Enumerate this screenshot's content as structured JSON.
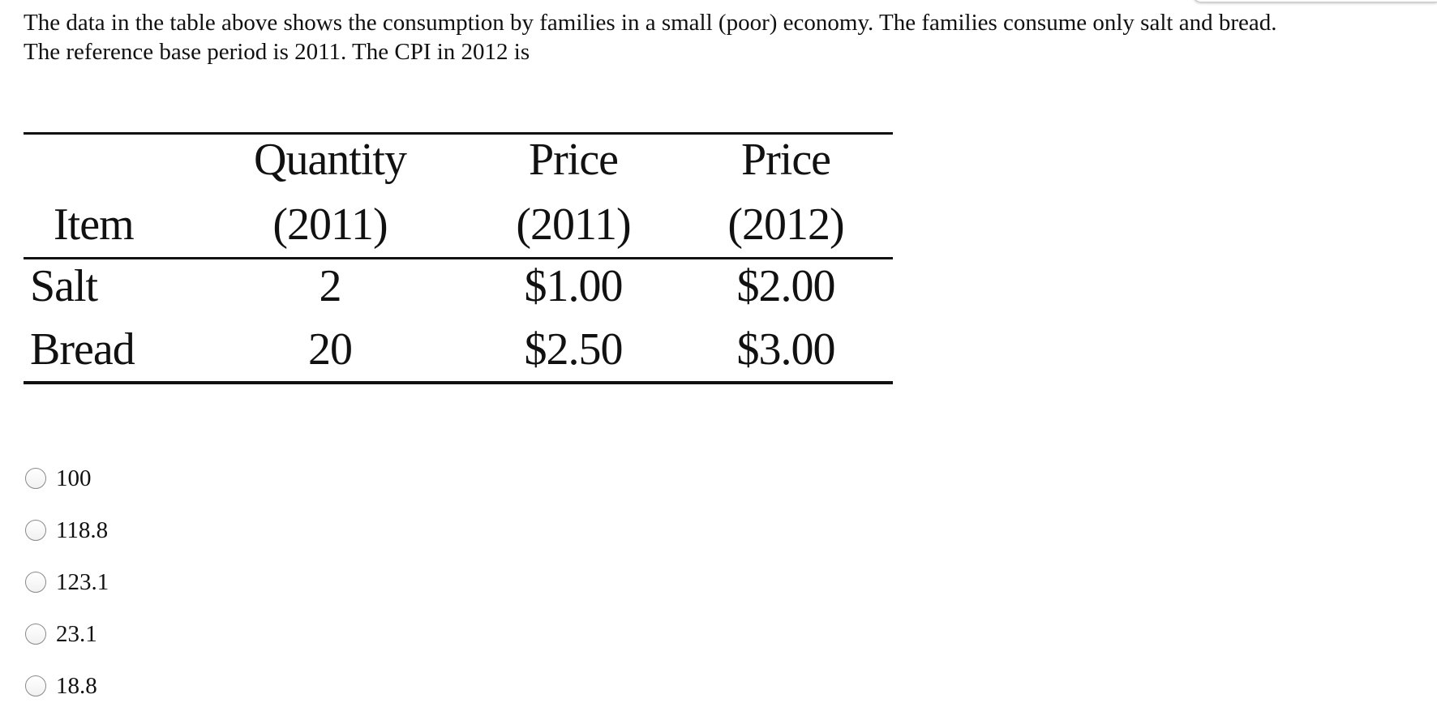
{
  "question": {
    "line1": "The data in the table above shows the consumption by families in a small (poor) economy. The families consume only salt and bread.",
    "line2": "The reference base period is 2011. The CPI in 2012 is"
  },
  "table": {
    "headers": {
      "item": "Item",
      "quantity_top": "Quantity",
      "quantity_bottom": "(2011)",
      "price2011_top": "Price",
      "price2011_bottom": "(2011)",
      "price2012_top": "Price",
      "price2012_bottom": "(2012)"
    },
    "rows": [
      {
        "item": "Salt",
        "quantity": "2",
        "price_2011": "$1.00",
        "price_2012": "$2.00"
      },
      {
        "item": "Bread",
        "quantity": "20",
        "price_2011": "$2.50",
        "price_2012": "$3.00"
      }
    ]
  },
  "options": [
    {
      "label": "100"
    },
    {
      "label": "118.8"
    },
    {
      "label": "123.1"
    },
    {
      "label": "23.1"
    },
    {
      "label": "18.8"
    }
  ]
}
